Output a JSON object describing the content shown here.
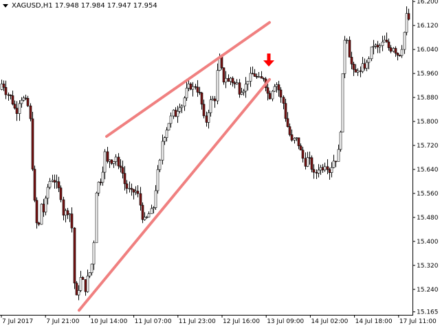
{
  "header": {
    "symbol": "XAGUSD,H1",
    "open": "17.948",
    "high": "17.984",
    "low": "17.947",
    "close": "17.954"
  },
  "colors": {
    "background": "#ffffff",
    "candle_bull_fill": "#ffffff",
    "candle_bear_fill": "#7a1414",
    "candle_outline": "#000000",
    "trendline": "#f08080",
    "signal_arrow": "#ff0000",
    "axis": "#000000"
  },
  "chart_data": {
    "type": "candlestick",
    "symbol": "XAGUSD",
    "timeframe": "H1",
    "grid": false,
    "ylim": [
      15.155,
      16.205
    ],
    "y_ticks": [
      "16.200",
      "16.120",
      "16.040",
      "15.960",
      "15.880",
      "15.800",
      "15.720",
      "15.640",
      "15.560",
      "15.480",
      "15.400",
      "15.320",
      "15.240",
      "15.165"
    ],
    "x_tick_labels": [
      "7 Jul 2017",
      "7 Jul 21:00",
      "10 Jul 14:00",
      "11 Jul 07:00",
      "11 Jul 23:00",
      "12 Jul 16:00",
      "13 Jul 09:00",
      "14 Jul 02:00",
      "14 Jul 18:00",
      "17 Jul 11:00"
    ],
    "price_path": [
      [
        0,
        15.88
      ],
      [
        3,
        15.92
      ],
      [
        7,
        15.93
      ],
      [
        11,
        15.9
      ],
      [
        15,
        15.89
      ],
      [
        19,
        15.88
      ],
      [
        23,
        15.85
      ],
      [
        27,
        15.83
      ],
      [
        31,
        15.87
      ],
      [
        35,
        15.88
      ],
      [
        39,
        15.87
      ],
      [
        43,
        15.86
      ],
      [
        47,
        15.8
      ],
      [
        51,
        15.6
      ],
      [
        55,
        15.47
      ],
      [
        59,
        15.44
      ],
      [
        63,
        15.53
      ],
      [
        67,
        15.49
      ],
      [
        71,
        15.57
      ],
      [
        75,
        15.6
      ],
      [
        79,
        15.61
      ],
      [
        83,
        15.6
      ],
      [
        87,
        15.58
      ],
      [
        91,
        15.56
      ],
      [
        95,
        15.49
      ],
      [
        99,
        15.5
      ],
      [
        103,
        15.5
      ],
      [
        107,
        15.48
      ],
      [
        111,
        15.25
      ],
      [
        115,
        15.2
      ],
      [
        119,
        15.28
      ],
      [
        123,
        15.27
      ],
      [
        127,
        15.24
      ],
      [
        131,
        15.29
      ],
      [
        135,
        15.3
      ],
      [
        139,
        15.37
      ],
      [
        143,
        15.58
      ],
      [
        147,
        15.6
      ],
      [
        151,
        15.61
      ],
      [
        155,
        15.7
      ],
      [
        159,
        15.66
      ],
      [
        163,
        15.68
      ],
      [
        167,
        15.66
      ],
      [
        171,
        15.69
      ],
      [
        175,
        15.64
      ],
      [
        179,
        15.66
      ],
      [
        183,
        15.6
      ],
      [
        187,
        15.58
      ],
      [
        191,
        15.57
      ],
      [
        195,
        15.56
      ],
      [
        199,
        15.57
      ],
      [
        203,
        15.56
      ],
      [
        207,
        15.52
      ],
      [
        211,
        15.47
      ],
      [
        215,
        15.47
      ],
      [
        219,
        15.49
      ],
      [
        223,
        15.5
      ],
      [
        227,
        15.52
      ],
      [
        231,
        15.62
      ],
      [
        235,
        15.65
      ],
      [
        239,
        15.74
      ],
      [
        243,
        15.76
      ],
      [
        247,
        15.79
      ],
      [
        251,
        15.81
      ],
      [
        255,
        15.83
      ],
      [
        259,
        15.82
      ],
      [
        263,
        15.86
      ],
      [
        267,
        15.85
      ],
      [
        271,
        15.88
      ],
      [
        275,
        15.91
      ],
      [
        279,
        15.92
      ],
      [
        283,
        15.91
      ],
      [
        287,
        15.92
      ],
      [
        291,
        15.9
      ],
      [
        295,
        15.88
      ],
      [
        299,
        15.81
      ],
      [
        303,
        15.8
      ],
      [
        307,
        15.85
      ],
      [
        311,
        15.88
      ],
      [
        315,
        15.86
      ],
      [
        319,
        15.97
      ],
      [
        323,
        16.02
      ],
      [
        327,
        15.93
      ],
      [
        331,
        15.95
      ],
      [
        335,
        15.93
      ],
      [
        339,
        15.95
      ],
      [
        343,
        15.92
      ],
      [
        347,
        15.93
      ],
      [
        351,
        15.9
      ],
      [
        355,
        15.91
      ],
      [
        359,
        15.91
      ],
      [
        363,
        15.94
      ],
      [
        367,
        15.95
      ],
      [
        371,
        15.96
      ],
      [
        375,
        15.95
      ],
      [
        379,
        15.94
      ],
      [
        383,
        15.94
      ],
      [
        387,
        15.95
      ],
      [
        391,
        15.9
      ],
      [
        395,
        15.88
      ],
      [
        399,
        15.91
      ],
      [
        403,
        15.93
      ],
      [
        407,
        15.92
      ],
      [
        411,
        15.88
      ],
      [
        415,
        15.86
      ],
      [
        419,
        15.8
      ],
      [
        423,
        15.77
      ],
      [
        427,
        15.73
      ],
      [
        431,
        15.74
      ],
      [
        435,
        15.74
      ],
      [
        439,
        15.71
      ],
      [
        443,
        15.68
      ],
      [
        447,
        15.66
      ],
      [
        451,
        15.68
      ],
      [
        455,
        15.66
      ],
      [
        459,
        15.62
      ],
      [
        463,
        15.63
      ],
      [
        467,
        15.65
      ],
      [
        471,
        15.64
      ],
      [
        475,
        15.66
      ],
      [
        479,
        15.65
      ],
      [
        483,
        15.63
      ],
      [
        487,
        15.67
      ],
      [
        491,
        15.67
      ],
      [
        495,
        15.7
      ],
      [
        499,
        15.8
      ],
      [
        503,
        16.07
      ],
      [
        507,
        16.09
      ],
      [
        511,
        16.02
      ],
      [
        515,
        15.98
      ],
      [
        519,
        15.95
      ],
      [
        523,
        15.98
      ],
      [
        527,
        15.96
      ],
      [
        531,
        15.99
      ],
      [
        535,
        15.98
      ],
      [
        539,
        16.01
      ],
      [
        543,
        16.04
      ],
      [
        547,
        16.06
      ],
      [
        551,
        16.04
      ],
      [
        555,
        16.05
      ],
      [
        559,
        16.06
      ],
      [
        563,
        16.07
      ],
      [
        567,
        16.05
      ],
      [
        571,
        16.04
      ],
      [
        575,
        16.05
      ],
      [
        579,
        16.03
      ],
      [
        583,
        16.02
      ],
      [
        587,
        16.04
      ],
      [
        591,
        16.1
      ],
      [
        595,
        16.17
      ],
      [
        598,
        16.13
      ]
    ],
    "trendlines": [
      {
        "x1": 155,
        "y1": 15.75,
        "x2": 392,
        "y2": 16.13
      },
      {
        "x1": 115,
        "y1": 15.17,
        "x2": 392,
        "y2": 15.94
      }
    ],
    "signal": {
      "x": 391,
      "price": 15.99,
      "direction": "down"
    }
  }
}
